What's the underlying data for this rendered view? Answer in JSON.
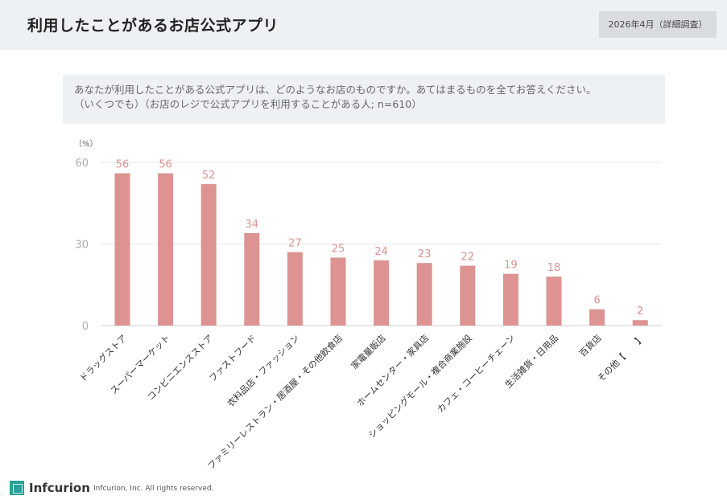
{
  "header": {
    "title": "利用したことがあるお店公式アプリ",
    "date_badge": "2026年4月（詳細調査）"
  },
  "question": {
    "line1": "あなたが利用したことがある公式アプリは、どのようなお店のものですか。あてはまるものを全てお答えください。",
    "line2": "（いくつでも）（お店のレジで公式アプリを利用することがある人; n=610）"
  },
  "chart_data": {
    "type": "bar",
    "categories": [
      "ドラッグストア",
      "スーパーマーケット",
      "コンビニエンスストア",
      "ファストフード",
      "衣料品店・ファッション",
      "ファミリーレストラン・居酒屋・その他飲食店",
      "家電量販店",
      "ホームセンター・家具店",
      "ショッピングモール・複合商業施設",
      "カフェ・コーヒーチェーン",
      "生活雑貨・日用品",
      "百貨店",
      "その他【　　】"
    ],
    "values": [
      56,
      56,
      52,
      34,
      27,
      25,
      24,
      23,
      22,
      19,
      18,
      6,
      2
    ],
    "ylabel": "（%）",
    "ylim": [
      0,
      60
    ],
    "yticks": [
      0,
      30,
      60
    ],
    "grid": true,
    "bar_color": "#dc9392",
    "label_color": "#dc9392"
  },
  "footer": {
    "logo": "Infcurion",
    "copyright": "Infcurion, Inc.  All rights reserved."
  }
}
